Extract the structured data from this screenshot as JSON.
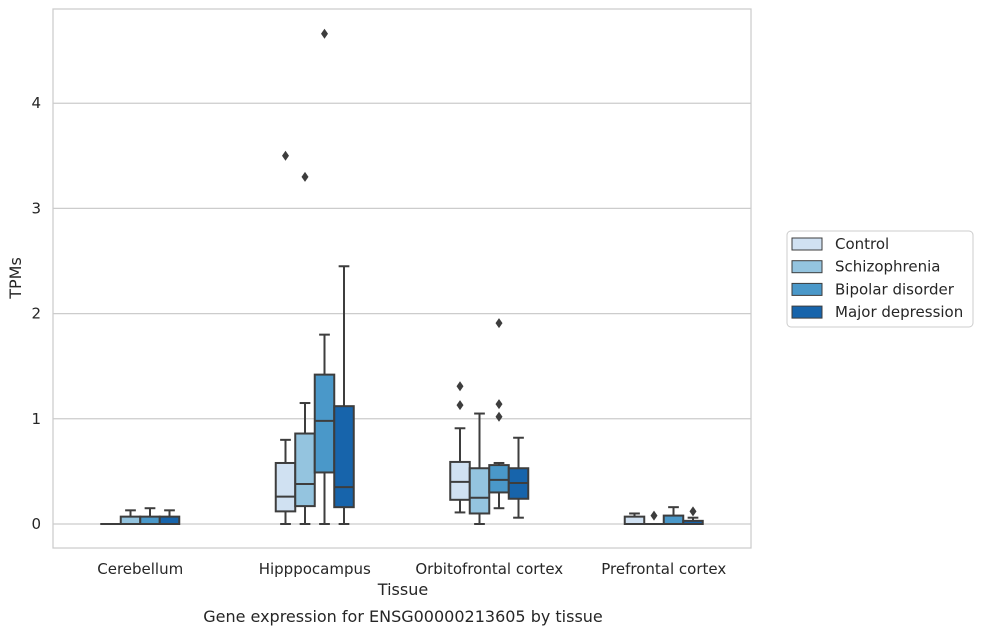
{
  "chart_data": {
    "type": "box",
    "xlabel": "Tissue",
    "ylabel": "TPMs",
    "caption": "Gene expression for ENSG00000213605 by tissue",
    "ylim": [
      -0.22,
      4.9
    ],
    "yticks": [
      0,
      1,
      2,
      3,
      4
    ],
    "grid": "horizontal",
    "legend_position": "right",
    "categories": [
      "Cerebellum",
      "Hipppocampus",
      "Orbitofrontal cortex",
      "Prefrontal cortex"
    ],
    "series": [
      {
        "name": "Control",
        "color": "#d0e1f2",
        "boxes": [
          {
            "whislo": 0,
            "q1": 0,
            "med": 0,
            "q3": 0,
            "whishi": 0,
            "fliers": []
          },
          {
            "whislo": 0.0,
            "q1": 0.12,
            "med": 0.26,
            "q3": 0.58,
            "whishi": 0.8,
            "fliers": [
              3.5
            ]
          },
          {
            "whislo": 0.11,
            "q1": 0.23,
            "med": 0.4,
            "q3": 0.59,
            "whishi": 0.91,
            "fliers": [
              1.13,
              1.31
            ]
          },
          {
            "whislo": 0.0,
            "q1": 0.0,
            "med": 0.0,
            "q3": 0.07,
            "whishi": 0.1,
            "fliers": []
          }
        ]
      },
      {
        "name": "Schizophrenia",
        "color": "#94c4df",
        "boxes": [
          {
            "whislo": 0,
            "q1": 0,
            "med": 0,
            "q3": 0.07,
            "whishi": 0.13,
            "fliers": []
          },
          {
            "whislo": 0.0,
            "q1": 0.17,
            "med": 0.38,
            "q3": 0.86,
            "whishi": 1.15,
            "fliers": [
              3.3
            ]
          },
          {
            "whislo": 0.0,
            "q1": 0.1,
            "med": 0.25,
            "q3": 0.53,
            "whishi": 1.05,
            "fliers": []
          },
          {
            "whislo": 0.0,
            "q1": 0.0,
            "med": 0.0,
            "q3": 0.0,
            "whishi": 0.0,
            "fliers": [
              0.08
            ]
          }
        ]
      },
      {
        "name": "Bipolar disorder",
        "color": "#4a98c9",
        "boxes": [
          {
            "whislo": 0,
            "q1": 0,
            "med": 0,
            "q3": 0.07,
            "whishi": 0.15,
            "fliers": []
          },
          {
            "whislo": 0.0,
            "q1": 0.49,
            "med": 0.98,
            "q3": 1.42,
            "whishi": 1.8,
            "fliers": [
              4.66
            ]
          },
          {
            "whislo": 0.15,
            "q1": 0.3,
            "med": 0.42,
            "q3": 0.56,
            "whishi": 0.58,
            "fliers": [
              1.02,
              1.14,
              1.91
            ]
          },
          {
            "whislo": 0.0,
            "q1": 0.0,
            "med": 0.0,
            "q3": 0.08,
            "whishi": 0.16,
            "fliers": []
          }
        ]
      },
      {
        "name": "Major depression",
        "color": "#1764ab",
        "boxes": [
          {
            "whislo": 0,
            "q1": 0,
            "med": 0,
            "q3": 0.07,
            "whishi": 0.13,
            "fliers": []
          },
          {
            "whislo": 0.0,
            "q1": 0.16,
            "med": 0.35,
            "q3": 1.12,
            "whishi": 2.45,
            "fliers": []
          },
          {
            "whislo": 0.06,
            "q1": 0.24,
            "med": 0.39,
            "q3": 0.53,
            "whishi": 0.82,
            "fliers": []
          },
          {
            "whislo": 0.0,
            "q1": 0.0,
            "med": 0.0,
            "q3": 0.03,
            "whishi": 0.06,
            "fliers": [
              0.12
            ]
          }
        ]
      }
    ]
  }
}
